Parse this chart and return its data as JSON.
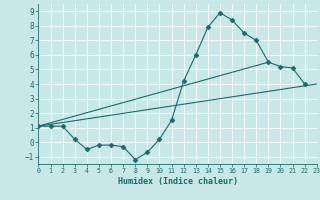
{
  "background_color": "#c8e8e8",
  "grid_color": "#ffffff",
  "line_color": "#1a6b6b",
  "line1_x": [
    0,
    1,
    2,
    3,
    4,
    5,
    6,
    7,
    8,
    9,
    10,
    11,
    12,
    13,
    14,
    15,
    16,
    17,
    18,
    19,
    20,
    21,
    22
  ],
  "line1_y": [
    1.1,
    1.1,
    1.1,
    0.2,
    -0.5,
    -0.2,
    -0.2,
    -0.3,
    -1.2,
    -0.7,
    0.2,
    1.5,
    4.2,
    6.0,
    7.9,
    8.9,
    8.4,
    7.5,
    7.0,
    5.5,
    5.2,
    5.1,
    4.0
  ],
  "line2_x": [
    0,
    23
  ],
  "line2_y": [
    1.1,
    4.0
  ],
  "line3_x": [
    0,
    19
  ],
  "line3_y": [
    1.1,
    5.5
  ],
  "xlim": [
    0,
    23
  ],
  "ylim": [
    -1.5,
    9.5
  ],
  "yticks": [
    -1,
    0,
    1,
    2,
    3,
    4,
    5,
    6,
    7,
    8,
    9
  ],
  "xticks": [
    0,
    1,
    2,
    3,
    4,
    5,
    6,
    7,
    8,
    9,
    10,
    11,
    12,
    13,
    14,
    15,
    16,
    17,
    18,
    19,
    20,
    21,
    22,
    23
  ],
  "xlabel": "Humidex (Indice chaleur)",
  "marker": "D",
  "markersize": 2.5,
  "linewidth": 0.8
}
